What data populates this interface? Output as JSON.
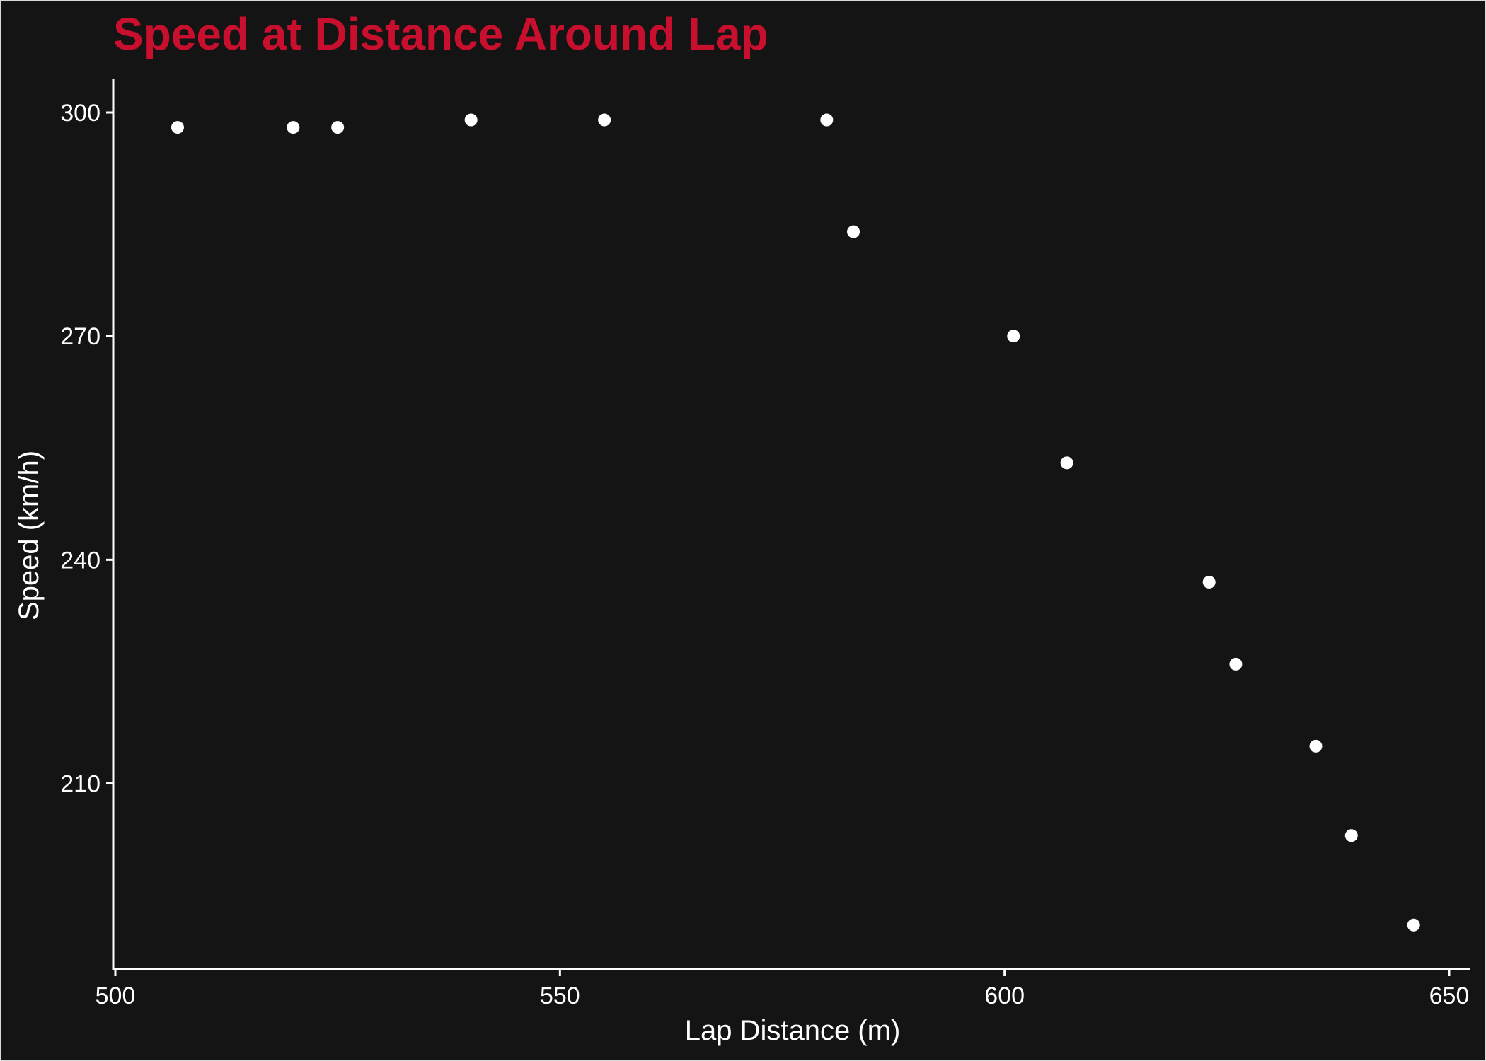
{
  "colors": {
    "background": "#141414",
    "title": "#c8102e",
    "foreground": "#ffffff",
    "points": "#ffffff"
  },
  "chart_data": {
    "type": "scatter",
    "title": "Speed at Distance Around Lap",
    "xlabel": "Lap Distance (m)",
    "ylabel": "Speed (km/h)",
    "xlim": [
      500,
      650
    ],
    "ylim": [
      185,
      300
    ],
    "xticks": [
      500,
      550,
      600,
      650
    ],
    "yticks": [
      210,
      240,
      270,
      300
    ],
    "grid": false,
    "legend": "none",
    "series": [
      {
        "points": [
          {
            "x": 507,
            "y": 298
          },
          {
            "x": 520,
            "y": 298
          },
          {
            "x": 525,
            "y": 298
          },
          {
            "x": 540,
            "y": 299
          },
          {
            "x": 555,
            "y": 299
          },
          {
            "x": 580,
            "y": 299
          },
          {
            "x": 583,
            "y": 284
          },
          {
            "x": 601,
            "y": 270
          },
          {
            "x": 607,
            "y": 253
          },
          {
            "x": 623,
            "y": 237
          },
          {
            "x": 626,
            "y": 226
          },
          {
            "x": 635,
            "y": 215
          },
          {
            "x": 639,
            "y": 203
          },
          {
            "x": 646,
            "y": 191
          }
        ]
      }
    ]
  }
}
